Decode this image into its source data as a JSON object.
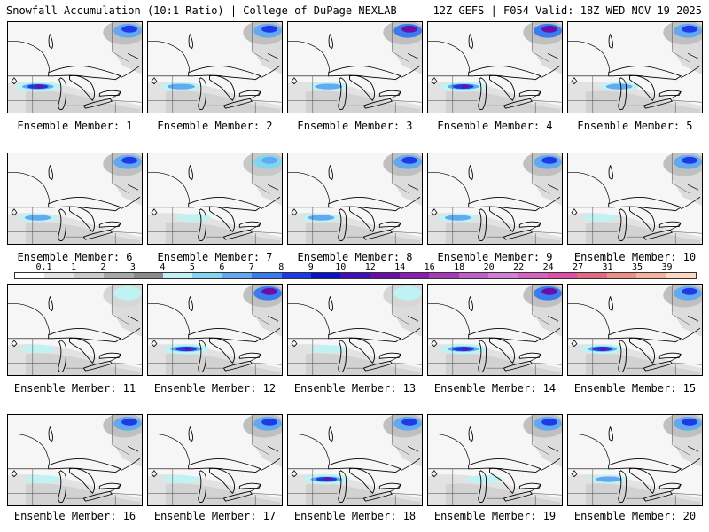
{
  "header": {
    "left_title": "Snowfall Accumulation (10:1 Ratio) | College of DuPage NEXLAB",
    "right_title": "12Z GEFS | F054 Valid: 18Z WED NOV 19 2025"
  },
  "colorbar": {
    "labels": [
      "0.1",
      "1",
      "2",
      "3",
      "4",
      "5",
      "6",
      "7",
      "8",
      "9",
      "10",
      "12",
      "14",
      "16",
      "18",
      "20",
      "22",
      "24",
      "27",
      "31",
      "35",
      "39"
    ],
    "colors": [
      "#ffffff",
      "#e4e4e4",
      "#cacaca",
      "#a8a8a8",
      "#8a8a8a",
      "#bff3f3",
      "#7fd6ee",
      "#62a9f2",
      "#3a7cf0",
      "#1d3ae6",
      "#0a12c8",
      "#4010b8",
      "#6a10a8",
      "#8a1ab0",
      "#a43ab8",
      "#be60c8",
      "#d27ed6",
      "#d860c0",
      "#de4ea6",
      "#e06a80",
      "#ea8f8a",
      "#f2b49c",
      "#fad8c4"
    ]
  },
  "panels": [
    {
      "member": 1,
      "label": "Ensemble Member: 1",
      "north_snow": "strong",
      "band_intensity": 1.0,
      "band_offset": 0
    },
    {
      "member": 2,
      "label": "Ensemble Member: 2",
      "north_snow": "strong",
      "band_intensity": 0.6,
      "band_offset": 6
    },
    {
      "member": 3,
      "label": "Ensemble Member: 3",
      "north_snow": "max",
      "band_intensity": 0.6,
      "band_offset": 20
    },
    {
      "member": 4,
      "label": "Ensemble Member: 4",
      "north_snow": "max",
      "band_intensity": 1.0,
      "band_offset": 10
    },
    {
      "member": 5,
      "label": "Ensemble Member: 5",
      "north_snow": "strong",
      "band_intensity": 0.5,
      "band_offset": 40
    },
    {
      "member": 6,
      "label": "Ensemble Member: 6",
      "north_snow": "strong",
      "band_intensity": 0.5,
      "band_offset": 0
    },
    {
      "member": 7,
      "label": "Ensemble Member: 7",
      "north_snow": "moderate",
      "band_intensity": 0.2,
      "band_offset": 30
    },
    {
      "member": 8,
      "label": "Ensemble Member: 8",
      "north_snow": "strong",
      "band_intensity": 0.5,
      "band_offset": 6
    },
    {
      "member": 9,
      "label": "Ensemble Member: 9",
      "north_snow": "strong",
      "band_intensity": 0.5,
      "band_offset": 0
    },
    {
      "member": 10,
      "label": "Ensemble Member: 10",
      "north_snow": "strong",
      "band_intensity": 0.15,
      "band_offset": 4
    },
    {
      "member": 11,
      "label": "Ensemble Member: 11",
      "north_snow": "light",
      "band_intensity": 0.3,
      "band_offset": 0
    },
    {
      "member": 12,
      "label": "Ensemble Member: 12",
      "north_snow": "max",
      "band_intensity": 1.0,
      "band_offset": 16
    },
    {
      "member": 13,
      "label": "Ensemble Member: 13",
      "north_snow": "light",
      "band_intensity": 0.3,
      "band_offset": 20
    },
    {
      "member": 14,
      "label": "Ensemble Member: 14",
      "north_snow": "max",
      "band_intensity": 1.0,
      "band_offset": 10
    },
    {
      "member": 15,
      "label": "Ensemble Member: 15",
      "north_snow": "strong",
      "band_intensity": 0.8,
      "band_offset": 8
    },
    {
      "member": 16,
      "label": "Ensemble Member: 16",
      "north_snow": "strong",
      "band_intensity": 0.3,
      "band_offset": 10
    },
    {
      "member": 17,
      "label": "Ensemble Member: 17",
      "north_snow": "strong",
      "band_intensity": 0.3,
      "band_offset": 6
    },
    {
      "member": 18,
      "label": "Ensemble Member: 18",
      "north_snow": "strong",
      "band_intensity": 1.0,
      "band_offset": 16
    },
    {
      "member": 19,
      "label": "Ensemble Member: 19",
      "north_snow": "strong",
      "band_intensity": 0.3,
      "band_offset": 50
    },
    {
      "member": 20,
      "label": "Ensemble Member: 20",
      "north_snow": "strong",
      "band_intensity": 0.5,
      "band_offset": 20
    }
  ]
}
